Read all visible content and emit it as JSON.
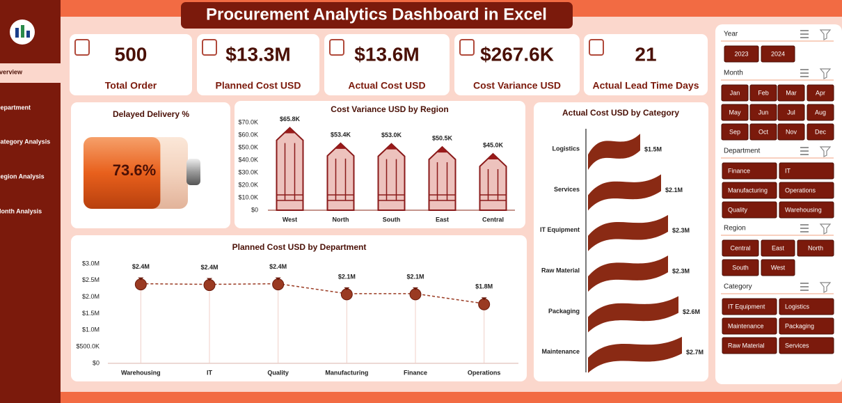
{
  "header": {
    "title": "Procurement Analytics Dashboard in Excel"
  },
  "sidebar": {
    "items": [
      "Overview",
      "Department",
      "Category Analysis",
      "Region Analysis",
      "Month Analysis"
    ]
  },
  "kpis": [
    {
      "value": "500",
      "label": "Total Order"
    },
    {
      "value": "$13.3M",
      "label": "Planned Cost USD"
    },
    {
      "value": "$13.6M",
      "label": "Actual Cost USD"
    },
    {
      "value": "$267.6K",
      "label": "Cost Variance USD"
    },
    {
      "value": "21",
      "label": "Actual Lead Time Days"
    }
  ],
  "slicers": [
    {
      "title": "Year",
      "items": [
        "2023",
        "2024"
      ]
    },
    {
      "title": "Month",
      "items": [
        "Jan",
        "Feb",
        "Mar",
        "Apr",
        "May",
        "Jun",
        "Jul",
        "Aug",
        "Sep",
        "Oct",
        "Nov",
        "Dec"
      ]
    },
    {
      "title": "Department",
      "items": [
        "Finance",
        "IT",
        "Manufacturing",
        "Operations",
        "Quality",
        "Warehousing"
      ]
    },
    {
      "title": "Region",
      "items": [
        "Central",
        "East",
        "North",
        "South",
        "West"
      ]
    },
    {
      "title": "Category",
      "items": [
        "IT Equipment",
        "Logistics",
        "Maintenance",
        "Packaging",
        "Raw Material",
        "Services"
      ]
    }
  ],
  "chart_data": [
    {
      "type": "battery",
      "title": "Delayed Delivery %",
      "value": 73.6,
      "value_label": "73.6%",
      "color": "#e8601c"
    },
    {
      "type": "bar",
      "title": "Cost Variance USD by Region",
      "categories": [
        "West",
        "North",
        "South",
        "East",
        "Central"
      ],
      "values": [
        65800,
        53400,
        53000,
        50500,
        45000
      ],
      "value_labels": [
        "$65.8K",
        "$53.4K",
        "$53.0K",
        "$50.5K",
        "$45.0K"
      ],
      "color": "#edc2bd",
      "ylim": [
        0,
        70000
      ],
      "yticks": [
        {
          "value": 0,
          "label": "$0"
        },
        {
          "value": 10000,
          "label": "$10.0K"
        },
        {
          "value": 20000,
          "label": "$20.0K"
        },
        {
          "value": 30000,
          "label": "$30.0K"
        },
        {
          "value": 40000,
          "label": "$40.0K"
        },
        {
          "value": 50000,
          "label": "$50.0K"
        },
        {
          "value": 60000,
          "label": "$60.0K"
        },
        {
          "value": 70000,
          "label": "$70.0K"
        }
      ]
    },
    {
      "type": "line",
      "title": "Planned Cost USD by Department",
      "categories": [
        "Warehousing",
        "IT",
        "Quality",
        "Manufacturing",
        "Finance",
        "Operations"
      ],
      "values": [
        2400000,
        2380000,
        2400000,
        2100000,
        2100000,
        1800000
      ],
      "value_labels": [
        "$2.4M",
        "$2.4M",
        "$2.4M",
        "$2.1M",
        "$2.1M",
        "$1.8M"
      ],
      "color": "#9a3a22",
      "ylim": [
        0,
        3000000
      ],
      "yticks": [
        {
          "value": 0,
          "label": "$0"
        },
        {
          "value": 500000,
          "label": "$500.0K"
        },
        {
          "value": 1000000,
          "label": "$1.0M"
        },
        {
          "value": 1500000,
          "label": "$1.5M"
        },
        {
          "value": 2000000,
          "label": "$2.0M"
        },
        {
          "value": 2500000,
          "label": "$2.5M"
        },
        {
          "value": 3000000,
          "label": "$3.0M"
        }
      ]
    },
    {
      "type": "flag",
      "title": "Actual Cost USD by Category",
      "categories": [
        "Logistics",
        "Services",
        "IT Equipment",
        "Raw Material",
        "Packaging",
        "Maintenance"
      ],
      "values": [
        1.5,
        2.1,
        2.3,
        2.3,
        2.6,
        2.7
      ],
      "value_labels": [
        "$1.5M",
        "$2.1M",
        "$2.3M",
        "$2.3M",
        "$2.6M",
        "$2.7M"
      ],
      "color": "#8a2a14"
    }
  ]
}
